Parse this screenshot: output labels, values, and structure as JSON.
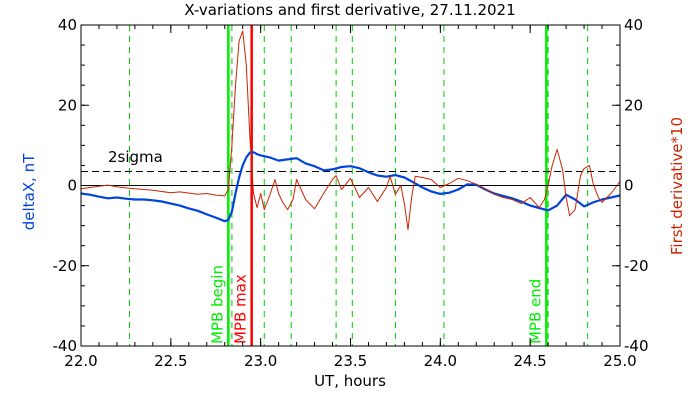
{
  "chart_data": {
    "type": "line",
    "title": "X-variations and first derivative, 27.11.2021",
    "xlabel": "UT, hours",
    "ylabel_left": "deltaX, nT",
    "ylabel_right": "First derivative*10",
    "xlim": [
      22.0,
      25.0
    ],
    "ylim_left": [
      -40,
      40
    ],
    "ylim_right": [
      -40,
      40
    ],
    "x_ticks": [
      22.0,
      22.5,
      23.0,
      23.5,
      24.0,
      24.5,
      25.0
    ],
    "x_tick_labels": [
      "22.0",
      "22.5",
      "23.0",
      "23.5",
      "24.0",
      "24.5",
      "25.0"
    ],
    "y_ticks": [
      -40,
      -20,
      0,
      20,
      40
    ],
    "y_tick_labels": [
      "-40",
      "-20",
      "0",
      "20",
      "40"
    ],
    "grid": false,
    "zero_line": 0,
    "sigma_line": {
      "label": "2sigma",
      "value": 3.5,
      "color": "#000000"
    },
    "dashed_markers": {
      "color": "#00cc00",
      "x": [
        22.27,
        22.84,
        23.02,
        23.17,
        23.42,
        23.51,
        23.75,
        24.02,
        24.6,
        24.82
      ]
    },
    "markers": [
      {
        "label": "MPB begin",
        "x": 22.82,
        "color": "#00ee00"
      },
      {
        "label": "MPB max",
        "x": 22.95,
        "color": "#ff0000"
      },
      {
        "label": "MPB end",
        "x": 24.59,
        "color": "#00ee00"
      }
    ],
    "series": [
      {
        "name": "deltaX",
        "axis": "left",
        "color": "#0044dd",
        "x": [
          22.0,
          22.05,
          22.1,
          22.15,
          22.2,
          22.25,
          22.3,
          22.35,
          22.4,
          22.45,
          22.5,
          22.55,
          22.6,
          22.65,
          22.7,
          22.75,
          22.8,
          22.82,
          22.84,
          22.86,
          22.88,
          22.9,
          22.92,
          22.94,
          22.96,
          22.98,
          23.0,
          23.05,
          23.1,
          23.15,
          23.2,
          23.25,
          23.3,
          23.35,
          23.4,
          23.45,
          23.5,
          23.55,
          23.6,
          23.65,
          23.7,
          23.75,
          23.8,
          23.85,
          23.9,
          23.95,
          24.0,
          24.05,
          24.1,
          24.15,
          24.2,
          24.25,
          24.3,
          24.35,
          24.4,
          24.45,
          24.5,
          24.55,
          24.6,
          24.65,
          24.7,
          24.75,
          24.8,
          24.85,
          24.9,
          24.95,
          25.0
        ],
        "y": [
          -2.0,
          -2.3,
          -2.8,
          -3.2,
          -3.0,
          -3.3,
          -3.5,
          -3.5,
          -3.7,
          -4.0,
          -4.5,
          -5.0,
          -5.7,
          -6.3,
          -7.2,
          -8.0,
          -8.9,
          -8.6,
          -6.5,
          -2.0,
          2.0,
          5.0,
          7.0,
          8.2,
          8.3,
          7.8,
          7.5,
          7.0,
          6.2,
          6.5,
          6.8,
          5.5,
          4.8,
          3.8,
          4.0,
          4.6,
          4.8,
          4.3,
          3.3,
          2.5,
          2.2,
          2.6,
          2.0,
          0.8,
          -0.5,
          -1.5,
          -2.1,
          -1.8,
          -1.0,
          0.3,
          0.2,
          -1.0,
          -2.0,
          -2.6,
          -3.2,
          -4.0,
          -5.0,
          -5.6,
          -6.2,
          -5.0,
          -2.3,
          -3.5,
          -5.2,
          -4.2,
          -3.5,
          -3.0,
          -2.5
        ]
      },
      {
        "name": "First derivative*10",
        "axis": "right",
        "color": "#cc2200",
        "x": [
          22.0,
          22.05,
          22.1,
          22.15,
          22.2,
          22.25,
          22.3,
          22.35,
          22.4,
          22.45,
          22.5,
          22.55,
          22.6,
          22.65,
          22.7,
          22.75,
          22.8,
          22.82,
          22.84,
          22.86,
          22.88,
          22.9,
          22.92,
          22.94,
          22.96,
          22.98,
          23.0,
          23.02,
          23.05,
          23.08,
          23.1,
          23.12,
          23.15,
          23.18,
          23.2,
          23.25,
          23.3,
          23.35,
          23.4,
          23.42,
          23.45,
          23.5,
          23.55,
          23.6,
          23.65,
          23.7,
          23.72,
          23.75,
          23.78,
          23.8,
          23.82,
          23.84,
          23.86,
          23.9,
          23.95,
          24.0,
          24.05,
          24.1,
          24.15,
          24.2,
          24.25,
          24.3,
          24.35,
          24.4,
          24.45,
          24.5,
          24.55,
          24.58,
          24.6,
          24.62,
          24.65,
          24.68,
          24.7,
          24.72,
          24.75,
          24.78,
          24.8,
          24.83,
          24.85,
          24.88,
          24.9,
          24.95,
          25.0
        ],
        "y": [
          -0.8,
          -0.5,
          -0.2,
          0.1,
          -0.3,
          -0.6,
          -0.8,
          -1.0,
          -1.2,
          -1.5,
          -1.8,
          -1.6,
          -1.9,
          -2.2,
          -2.0,
          -2.4,
          -2.6,
          -1.0,
          10.0,
          25.0,
          36.0,
          38.5,
          30.0,
          12.0,
          -2.0,
          -5.5,
          -2.0,
          -6.0,
          -2.5,
          1.5,
          -2.0,
          -4.0,
          -6.0,
          -3.5,
          1.5,
          -3.5,
          -5.8,
          -2.0,
          1.5,
          2.5,
          -1.0,
          1.8,
          -3.0,
          -0.5,
          -4.0,
          -0.5,
          2.3,
          -2.2,
          0.0,
          -4.5,
          -11.0,
          -3.0,
          2.3,
          2.0,
          1.5,
          -0.5,
          0.5,
          1.8,
          1.2,
          0.3,
          -0.8,
          -2.2,
          -3.0,
          -3.5,
          -4.5,
          -3.0,
          -5.5,
          -3.5,
          0.0,
          4.5,
          9.0,
          4.0,
          -3.0,
          -7.5,
          -6.0,
          2.5,
          4.2,
          5.0,
          0.5,
          -3.0,
          -4.2,
          -2.0,
          1.0
        ]
      }
    ]
  }
}
